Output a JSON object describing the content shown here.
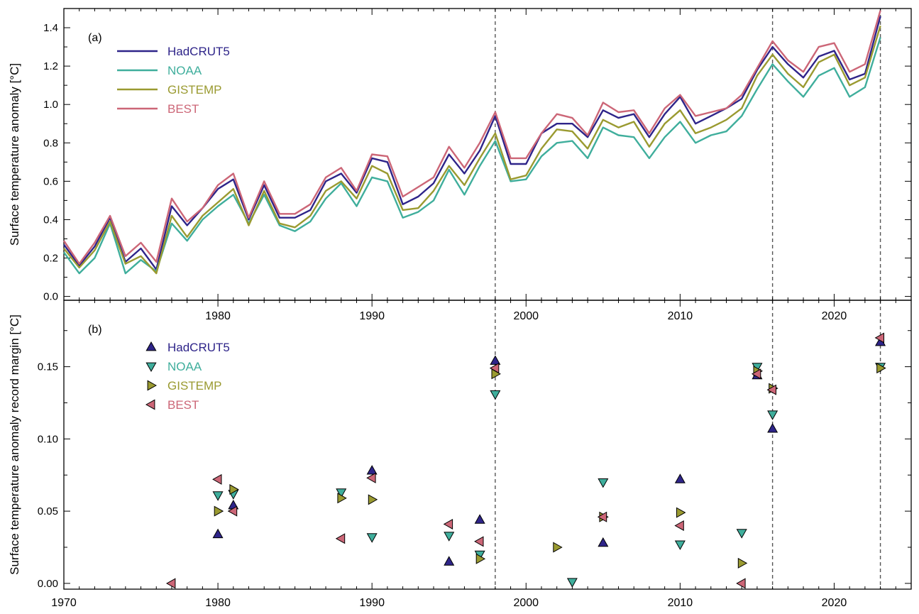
{
  "colors": {
    "HadCRUT5": "#2e2489",
    "NOAA": "#3fae9c",
    "GISTEMP": "#9a9a30",
    "BEST": "#cc6677",
    "vline": "#555555",
    "axis": "#000000"
  },
  "chart_data": [
    {
      "type": "line",
      "panel_label": "(a)",
      "ylabel": "Surface temperature anomaly [°C]",
      "xlim": [
        1970,
        2025
      ],
      "ylim": [
        -0.02,
        1.5
      ],
      "yticks": [
        0.0,
        0.2,
        0.4,
        0.6,
        0.8,
        1.0,
        1.2,
        1.4
      ],
      "ytick_labels": [
        "0.0",
        "0.2",
        "0.4",
        "0.6",
        "0.8",
        "1.0",
        "1.2",
        "1.4"
      ],
      "vlines": [
        1998,
        2016,
        2023
      ],
      "legend": [
        "HadCRUT5",
        "NOAA",
        "GISTEMP",
        "BEST"
      ],
      "x": [
        1970,
        1971,
        1972,
        1973,
        1974,
        1975,
        1976,
        1977,
        1978,
        1979,
        1980,
        1981,
        1982,
        1983,
        1984,
        1985,
        1986,
        1987,
        1988,
        1989,
        1990,
        1991,
        1992,
        1993,
        1994,
        1995,
        1996,
        1997,
        1998,
        1999,
        2000,
        2001,
        2002,
        2003,
        2004,
        2005,
        2006,
        2007,
        2008,
        2009,
        2010,
        2011,
        2012,
        2013,
        2014,
        2015,
        2016,
        2017,
        2018,
        2019,
        2020,
        2021,
        2022,
        2023
      ],
      "series": [
        {
          "name": "HadCRUT5",
          "values": [
            0.27,
            0.16,
            0.26,
            0.41,
            0.18,
            0.25,
            0.14,
            0.47,
            0.37,
            0.46,
            0.56,
            0.61,
            0.4,
            0.58,
            0.41,
            0.41,
            0.45,
            0.6,
            0.64,
            0.54,
            0.72,
            0.7,
            0.48,
            0.52,
            0.59,
            0.74,
            0.64,
            0.76,
            0.94,
            0.69,
            0.69,
            0.85,
            0.9,
            0.9,
            0.83,
            0.97,
            0.93,
            0.95,
            0.83,
            0.95,
            1.04,
            0.9,
            0.94,
            0.98,
            1.03,
            1.18,
            1.3,
            1.21,
            1.14,
            1.25,
            1.28,
            1.13,
            1.16,
            1.46
          ]
        },
        {
          "name": "NOAA",
          "values": [
            0.23,
            0.12,
            0.2,
            0.38,
            0.12,
            0.19,
            0.13,
            0.38,
            0.29,
            0.4,
            0.47,
            0.53,
            0.38,
            0.53,
            0.37,
            0.34,
            0.39,
            0.51,
            0.59,
            0.47,
            0.62,
            0.6,
            0.41,
            0.44,
            0.5,
            0.66,
            0.53,
            0.68,
            0.81,
            0.6,
            0.61,
            0.73,
            0.8,
            0.81,
            0.72,
            0.88,
            0.84,
            0.83,
            0.72,
            0.83,
            0.91,
            0.8,
            0.84,
            0.86,
            0.94,
            1.08,
            1.21,
            1.12,
            1.04,
            1.15,
            1.19,
            1.04,
            1.09,
            1.35
          ]
        },
        {
          "name": "GISTEMP",
          "values": [
            0.25,
            0.15,
            0.24,
            0.39,
            0.17,
            0.21,
            0.12,
            0.42,
            0.31,
            0.42,
            0.49,
            0.56,
            0.37,
            0.55,
            0.38,
            0.36,
            0.42,
            0.55,
            0.6,
            0.51,
            0.68,
            0.64,
            0.45,
            0.46,
            0.55,
            0.68,
            0.58,
            0.72,
            0.85,
            0.61,
            0.63,
            0.77,
            0.87,
            0.86,
            0.77,
            0.92,
            0.88,
            0.91,
            0.78,
            0.9,
            0.97,
            0.85,
            0.88,
            0.92,
            0.98,
            1.15,
            1.26,
            1.16,
            1.09,
            1.22,
            1.26,
            1.1,
            1.14,
            1.41
          ]
        },
        {
          "name": "BEST",
          "values": [
            0.29,
            0.17,
            0.28,
            0.42,
            0.21,
            0.28,
            0.18,
            0.51,
            0.39,
            0.46,
            0.58,
            0.64,
            0.41,
            0.6,
            0.43,
            0.43,
            0.48,
            0.62,
            0.67,
            0.55,
            0.74,
            0.73,
            0.52,
            0.57,
            0.62,
            0.78,
            0.67,
            0.8,
            0.96,
            0.72,
            0.72,
            0.85,
            0.95,
            0.93,
            0.84,
            1.01,
            0.96,
            0.97,
            0.85,
            0.98,
            1.05,
            0.94,
            0.96,
            0.98,
            1.05,
            1.19,
            1.33,
            1.23,
            1.17,
            1.3,
            1.32,
            1.17,
            1.21,
            1.49
          ]
        }
      ]
    },
    {
      "type": "scatter",
      "panel_label": "(b)",
      "ylabel": "Surface temperature anomaly record margin [°C]",
      "xlim": [
        1970,
        2025
      ],
      "ylim": [
        -0.004,
        0.196
      ],
      "xticks": [
        1970,
        1980,
        1990,
        2000,
        2010,
        2020
      ],
      "xtick_labels": [
        "1970",
        "1980",
        "1990",
        "2000",
        "2010",
        "2020"
      ],
      "yticks": [
        0.0,
        0.05,
        0.1,
        0.15
      ],
      "ytick_labels": [
        "0.00",
        "0.05",
        "0.10",
        "0.15"
      ],
      "vlines": [
        1998,
        2016,
        2023
      ],
      "legend": [
        "HadCRUT5",
        "NOAA",
        "GISTEMP",
        "BEST"
      ],
      "series": [
        {
          "name": "HadCRUT5",
          "marker": "triangle-up",
          "points": [
            [
              1980,
              0.034
            ],
            [
              1981,
              0.054
            ],
            [
              1990,
              0.078
            ],
            [
              1995,
              0.015
            ],
            [
              1997,
              0.044
            ],
            [
              1998,
              0.154
            ],
            [
              2005,
              0.028
            ],
            [
              2010,
              0.072
            ],
            [
              2015,
              0.144
            ],
            [
              2016,
              0.107
            ],
            [
              2023,
              0.167
            ]
          ]
        },
        {
          "name": "NOAA",
          "marker": "triangle-down",
          "points": [
            [
              1980,
              0.061
            ],
            [
              1981,
              0.062
            ],
            [
              1988,
              0.063
            ],
            [
              1990,
              0.032
            ],
            [
              1995,
              0.033
            ],
            [
              1997,
              0.02
            ],
            [
              1998,
              0.131
            ],
            [
              2003,
              0.001
            ],
            [
              2005,
              0.07
            ],
            [
              2010,
              0.027
            ],
            [
              2014,
              0.035
            ],
            [
              2015,
              0.15
            ],
            [
              2016,
              0.117
            ],
            [
              2023,
              0.15
            ]
          ]
        },
        {
          "name": "GISTEMP",
          "marker": "triangle-right",
          "points": [
            [
              1980,
              0.05
            ],
            [
              1981,
              0.065
            ],
            [
              1988,
              0.059
            ],
            [
              1990,
              0.058
            ],
            [
              1997,
              0.017
            ],
            [
              1998,
              0.145
            ],
            [
              2002,
              0.025
            ],
            [
              2005,
              0.046
            ],
            [
              2010,
              0.049
            ],
            [
              2014,
              0.014
            ],
            [
              2015,
              0.147
            ],
            [
              2016,
              0.135
            ],
            [
              2023,
              0.149
            ]
          ]
        },
        {
          "name": "BEST",
          "marker": "triangle-left",
          "points": [
            [
              1977,
              0.0
            ],
            [
              1980,
              0.072
            ],
            [
              1981,
              0.05
            ],
            [
              1988,
              0.031
            ],
            [
              1990,
              0.073
            ],
            [
              1995,
              0.041
            ],
            [
              1997,
              0.029
            ],
            [
              1998,
              0.149
            ],
            [
              2005,
              0.046
            ],
            [
              2010,
              0.04
            ],
            [
              2014,
              0.0
            ],
            [
              2015,
              0.145
            ],
            [
              2016,
              0.134
            ],
            [
              2023,
              0.17
            ]
          ]
        }
      ]
    }
  ]
}
